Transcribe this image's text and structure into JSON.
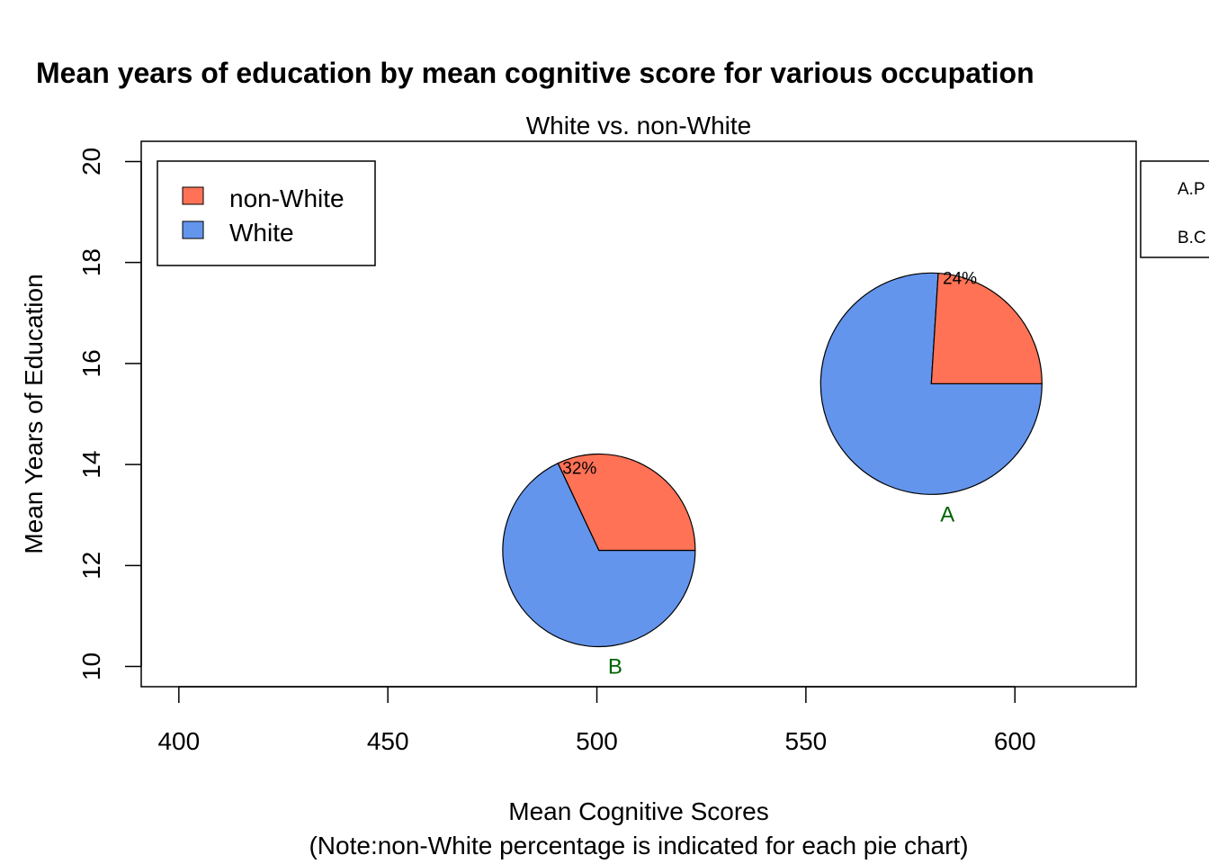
{
  "chart_data": {
    "type": "pie",
    "title": "Mean years of education by mean cognitive score for various occupation",
    "subtitle": "White vs. non-White",
    "xlabel": "Mean Cognitive Scores",
    "xlabel_note": "(Note:non-White percentage is indicated for each pie chart)",
    "ylabel": "Mean Years of Education",
    "xlim": [
      391,
      629
    ],
    "ylim": [
      9.6,
      20.4
    ],
    "x_ticks": [
      400,
      450,
      500,
      550,
      600
    ],
    "y_ticks": [
      10,
      12,
      14,
      16,
      18,
      20
    ],
    "legend": {
      "position": "top-left",
      "entries": [
        {
          "name": "non-White",
          "color": "#FF7256"
        },
        {
          "name": "White",
          "color": "#6495ED"
        }
      ]
    },
    "side_key": {
      "position": "right",
      "entries": [
        "A.P",
        "B.C"
      ]
    },
    "pies": [
      {
        "label": "A",
        "x": 580,
        "y": 15.6,
        "nonwhite_pct": 24,
        "pct_label": "24%"
      },
      {
        "label": "B",
        "x": 500.5,
        "y": 12.3,
        "nonwhite_pct": 32,
        "pct_label": "32%"
      }
    ],
    "colors": {
      "nonwhite": "#FF7256",
      "white": "#6495ED",
      "label": "#006400"
    }
  }
}
